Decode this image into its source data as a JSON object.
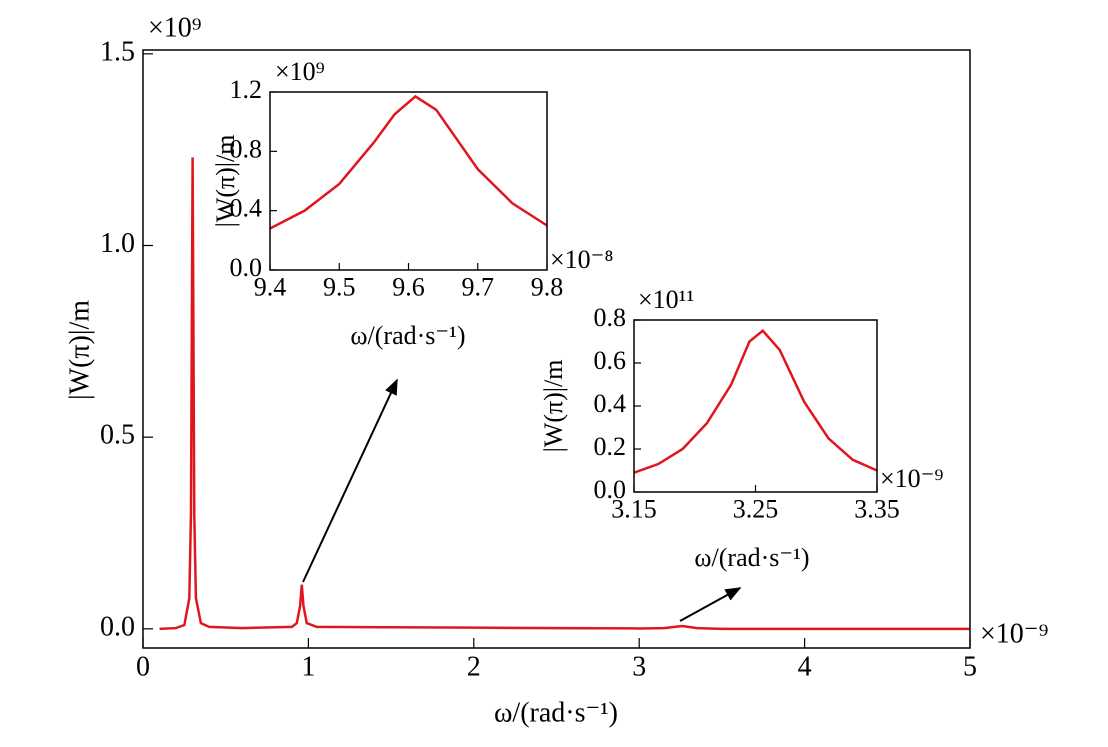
{
  "chart_data": [
    {
      "type": "line",
      "x_label": "ω/(rad·s⁻¹)",
      "y_label": "|W(π)|/m",
      "x_multiplier": "×10⁻⁹",
      "y_multiplier": "×10⁹",
      "x": [
        0.1,
        0.2,
        0.25,
        0.28,
        0.29,
        0.3,
        0.31,
        0.32,
        0.35,
        0.4,
        0.6,
        0.9,
        0.93,
        0.95,
        0.96,
        0.97,
        0.99,
        1.05,
        1.5,
        2.0,
        2.5,
        3.0,
        3.15,
        3.26,
        3.35,
        3.5,
        4.0,
        5.0
      ],
      "values": [
        0.0,
        0.002,
        0.01,
        0.08,
        0.3,
        1.23,
        0.3,
        0.08,
        0.015,
        0.005,
        0.002,
        0.005,
        0.015,
        0.06,
        0.115,
        0.06,
        0.015,
        0.005,
        0.004,
        0.003,
        0.002,
        0.001,
        0.002,
        0.0075,
        0.002,
        0.0,
        0.0,
        0.0
      ],
      "color": "#e0161e",
      "xlim": [
        0,
        5
      ],
      "xticks": [
        0,
        1,
        2,
        3,
        4,
        5
      ],
      "ylim": [
        -0.05,
        1.51
      ],
      "yticks": [
        {
          "value": 0,
          "label": "0.0"
        },
        0.5,
        {
          "value": 1,
          "label": "1.0"
        },
        1.5
      ]
    },
    {
      "type": "line",
      "x_label": "ω/(rad·s⁻¹)",
      "y_label": "|W(π)|/m",
      "x_multiplier": "×10⁻⁸",
      "y_multiplier": "×10⁹",
      "x": [
        9.4,
        9.45,
        9.5,
        9.55,
        9.58,
        9.61,
        9.64,
        9.67,
        9.7,
        9.75,
        9.8
      ],
      "values": [
        0.28,
        0.4,
        0.58,
        0.86,
        1.05,
        1.17,
        1.08,
        0.88,
        0.68,
        0.45,
        0.3
      ],
      "color": "#e0161e",
      "xlim": [
        9.4,
        9.8
      ],
      "xticks": [
        9.4,
        9.5,
        9.6,
        9.7,
        9.8
      ],
      "ylim": [
        0,
        1.2
      ],
      "yticks": [
        {
          "value": 0,
          "label": "0.0"
        },
        0.4,
        0.8,
        1.2
      ]
    },
    {
      "type": "line",
      "x_label": "ω/(rad·s⁻¹)",
      "y_label": "|W(π)|/m",
      "x_multiplier": "×10⁻⁹",
      "y_multiplier": "×10¹¹",
      "x": [
        3.15,
        3.17,
        3.19,
        3.21,
        3.23,
        3.245,
        3.256,
        3.27,
        3.29,
        3.31,
        3.33,
        3.35
      ],
      "values": [
        0.09,
        0.13,
        0.2,
        0.32,
        0.5,
        0.7,
        0.75,
        0.66,
        0.42,
        0.25,
        0.15,
        0.1
      ],
      "color": "#e0161e",
      "xlim": [
        3.15,
        3.35
      ],
      "xticks": [
        3.15,
        3.25,
        3.35
      ],
      "ylim": [
        0,
        0.8
      ],
      "yticks": [
        {
          "value": 0,
          "label": "0.0"
        },
        0.2,
        0.4,
        0.6,
        0.8
      ]
    }
  ]
}
